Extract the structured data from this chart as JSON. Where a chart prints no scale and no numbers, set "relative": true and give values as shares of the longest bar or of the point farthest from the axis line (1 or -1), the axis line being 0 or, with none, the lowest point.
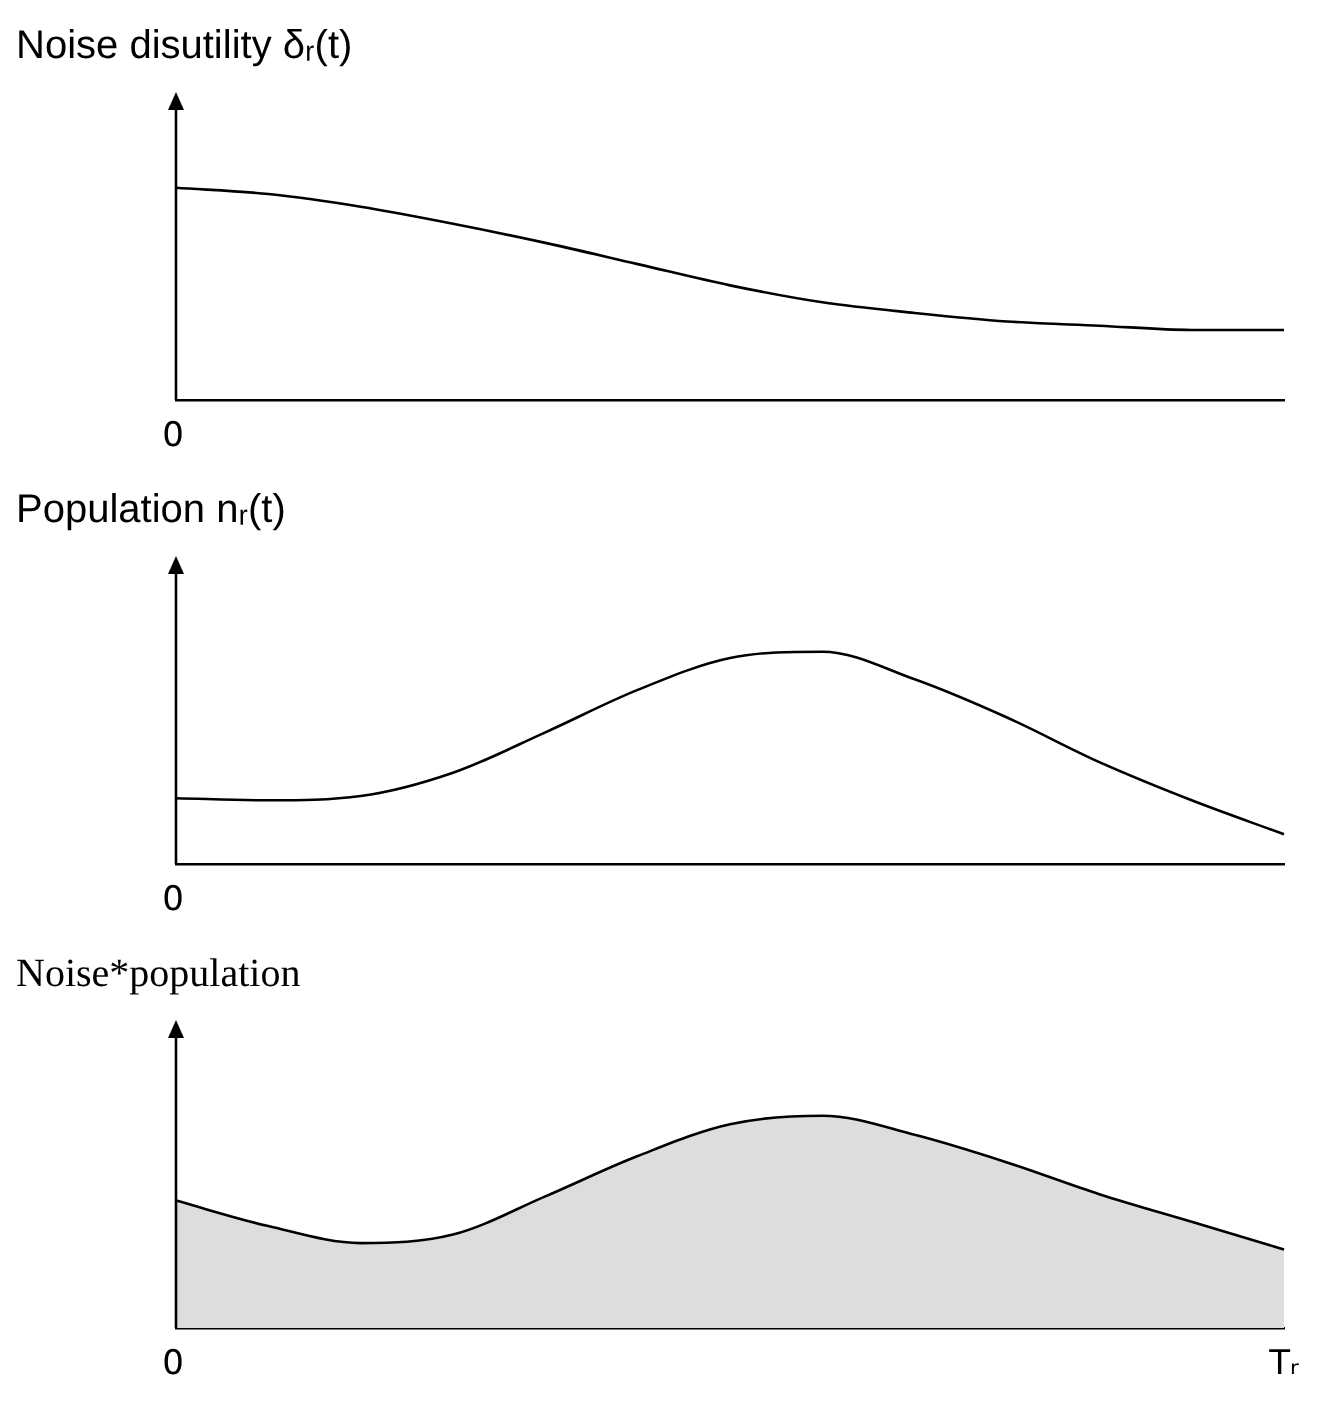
{
  "chart_data": [
    {
      "type": "line",
      "title": "Noise disutility δᵣ(t)",
      "relative": true,
      "annotations": [
        "0"
      ],
      "categories": [
        null,
        null,
        null,
        null,
        null,
        null,
        null,
        null,
        null,
        null,
        null,
        null,
        null
      ],
      "series": [
        {
          "color": "#000000",
          "values": [
            1,
            0.97,
            0.91,
            0.83,
            0.74,
            0.64,
            0.54,
            0.46,
            0.41,
            0.37,
            0.35,
            0.33,
            0.33
          ]
        }
      ],
      "legend": false
    },
    {
      "type": "line",
      "title": "Population nᵣ(t)",
      "relative": true,
      "annotations": [
        "0"
      ],
      "categories": [
        null,
        null,
        null,
        null,
        null,
        null,
        null,
        null,
        null,
        null,
        null,
        null,
        null
      ],
      "series": [
        {
          "color": "#000000",
          "values": [
            0.31,
            0.3,
            0.32,
            0.43,
            0.62,
            0.82,
            0.97,
            1,
            0.87,
            0.69,
            0.48,
            0.3,
            0.14
          ]
        }
      ],
      "legend": false
    },
    {
      "type": "area",
      "title": "Noise*population",
      "relative": true,
      "annotations": [
        "0",
        "Tᵣ"
      ],
      "categories": [
        null,
        null,
        null,
        null,
        null,
        null,
        null,
        null,
        null,
        null,
        null,
        null,
        null
      ],
      "series": [
        {
          "color": "#dddddd",
          "values": [
            0.6,
            0.48,
            0.4,
            0.44,
            0.62,
            0.81,
            0.96,
            1,
            0.91,
            0.78,
            0.63,
            0.5,
            0.37
          ]
        }
      ],
      "legend": false
    }
  ]
}
